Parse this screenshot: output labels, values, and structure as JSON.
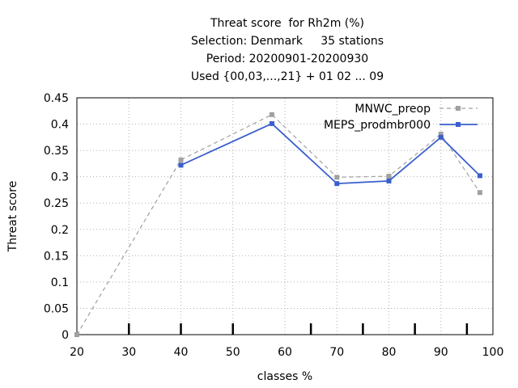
{
  "chart_data": {
    "type": "line",
    "title_lines": [
      "Threat score  for Rh2m (%)",
      "Selection: Denmark     35 stations",
      "Period: 20200901-20200930",
      "Used {00,03,...,21} + 01 02 ... 09"
    ],
    "xlabel": "classes %",
    "ylabel": "Threat score",
    "xlim": [
      20,
      100
    ],
    "ylim": [
      0,
      0.45
    ],
    "x_ticks": [
      "20",
      "30",
      "40",
      "50",
      "60",
      "70",
      "80",
      "90",
      "100"
    ],
    "y_ticks": [
      "0",
      "0.05",
      "0.1",
      "0.15",
      "0.2",
      "0.25",
      "0.3",
      "0.35",
      "0.4",
      "0.45"
    ],
    "class_marks": [
      30,
      40,
      50,
      65,
      75,
      85,
      95
    ],
    "grid": true,
    "legend_position": "top-right",
    "series": [
      {
        "name": "MNWC_preop",
        "color": "#a0a0a0",
        "style": "dashed",
        "x": [
          20,
          40,
          57.5,
          70,
          80,
          90,
          97.5
        ],
        "y": [
          0.0,
          0.332,
          0.418,
          0.299,
          0.301,
          0.381,
          0.27
        ]
      },
      {
        "name": "MEPS_prodmbr000",
        "color": "#3a5fcd",
        "style": "solid",
        "x": [
          40,
          57.5,
          70,
          80,
          90,
          97.5
        ],
        "y": [
          0.322,
          0.401,
          0.287,
          0.292,
          0.375,
          0.302
        ]
      }
    ]
  }
}
